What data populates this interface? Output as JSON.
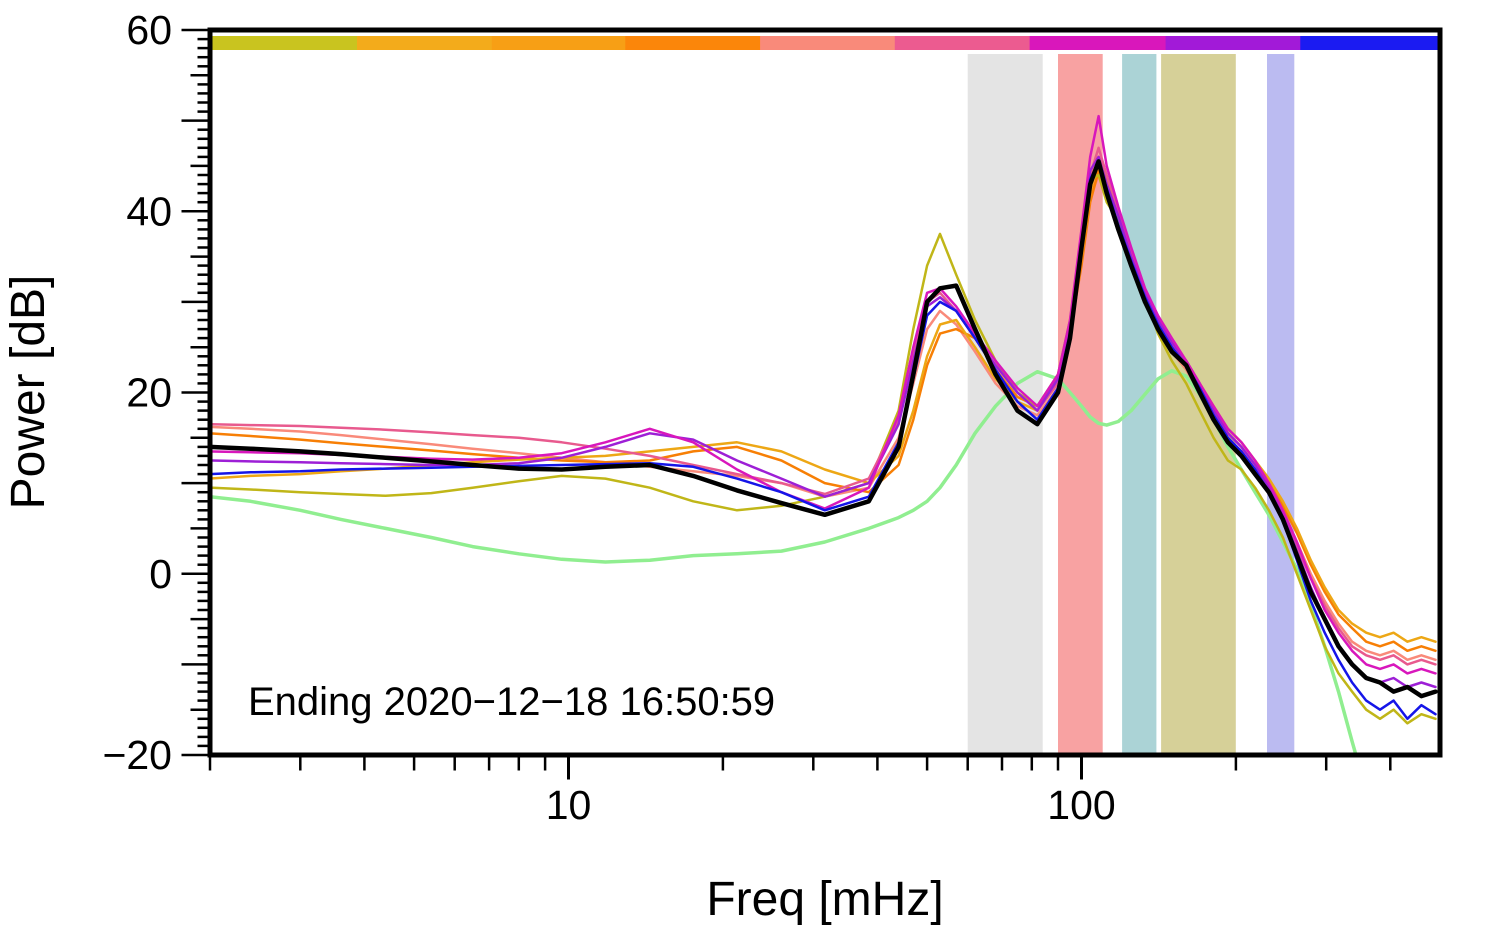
{
  "window": {
    "background": "#ffffff"
  },
  "chart_data": {
    "type": "line",
    "title": "",
    "xlabel": "Freq [mHz]",
    "ylabel": "Power [dB]",
    "annotation": "Ending 2020−12−18 16:50:59",
    "x_scale": "log",
    "xlim": [
      2,
      500
    ],
    "ylim": [
      -20,
      60
    ],
    "axis_color": "#000000",
    "x_ticks": {
      "major": [
        10,
        100
      ],
      "major_labels": [
        "10",
        "100"
      ],
      "minor": [
        2,
        3,
        4,
        5,
        6,
        7,
        8,
        9,
        20,
        30,
        40,
        50,
        60,
        70,
        80,
        90,
        200,
        300,
        400
      ]
    },
    "y_ticks": {
      "major": [
        -20,
        0,
        20,
        40,
        60
      ],
      "major_labels": [
        "−20",
        "0",
        "20",
        "40",
        "60"
      ],
      "minor_step": 1,
      "mid_step": 5,
      "major_step": 10
    },
    "bands": [
      {
        "name": "gray",
        "from_mhz": 60,
        "to_mhz": 84,
        "color": "#e4e4e4"
      },
      {
        "name": "red",
        "from_mhz": 90,
        "to_mhz": 110,
        "color": "#f8a2a2"
      },
      {
        "name": "teal",
        "from_mhz": 120,
        "to_mhz": 140,
        "color": "#abd3d6"
      },
      {
        "name": "olive",
        "from_mhz": 143,
        "to_mhz": 200,
        "color": "#d6d098"
      },
      {
        "name": "lavender",
        "from_mhz": 230,
        "to_mhz": 260,
        "color": "#bbbbf1"
      }
    ],
    "colorbar_segments": [
      {
        "color": "#c9c41f",
        "from": 0.0,
        "to": 0.118
      },
      {
        "color": "#f3ab1b",
        "from": 0.118,
        "to": 0.228
      },
      {
        "color": "#f79f15",
        "from": 0.228,
        "to": 0.337
      },
      {
        "color": "#fb860a",
        "from": 0.337,
        "to": 0.447
      },
      {
        "color": "#f98a7a",
        "from": 0.447,
        "to": 0.557
      },
      {
        "color": "#ec5b90",
        "from": 0.557,
        "to": 0.667
      },
      {
        "color": "#d917bb",
        "from": 0.667,
        "to": 0.778
      },
      {
        "color": "#a21ad8",
        "from": 0.778,
        "to": 0.888
      },
      {
        "color": "#1b1bf2",
        "from": 0.888,
        "to": 1.0
      }
    ],
    "x_mhz": [
      2.0,
      2.4,
      3.0,
      3.6,
      4.4,
      5.4,
      6.5,
      8.0,
      9.7,
      11.8,
      14.4,
      17.5,
      21.3,
      26,
      31.6,
      38.5,
      44,
      47,
      50,
      53,
      57,
      62,
      68,
      75,
      82,
      90,
      95,
      100,
      104,
      108,
      112,
      118,
      125,
      133,
      141,
      150,
      160,
      170,
      181,
      193,
      205,
      218,
      232,
      247,
      263,
      280,
      298,
      317,
      337,
      359,
      382,
      406,
      432,
      460,
      490
    ],
    "series": [
      {
        "name": "smooth-reference-green",
        "color": "#90ee90",
        "width": 3.5,
        "values": [
          8.5,
          8.0,
          7.0,
          6.0,
          5.0,
          4.0,
          3.0,
          2.2,
          1.6,
          1.3,
          1.5,
          2.0,
          2.2,
          2.5,
          3.5,
          5.0,
          6.2,
          7.0,
          8.0,
          9.5,
          12.0,
          15.5,
          18.5,
          21.0,
          22.3,
          21.5,
          20.0,
          18.5,
          17.3,
          16.6,
          16.4,
          16.8,
          18.0,
          19.8,
          21.5,
          22.4,
          21.8,
          19.8,
          17.0,
          14.0,
          11.5,
          9.0,
          6.5,
          3.5,
          0.5,
          -3.5,
          -8.0,
          -13.0,
          -18.5,
          -24.0,
          null,
          null,
          null,
          null,
          null
        ]
      },
      {
        "name": "spectrum-salmon",
        "color": "#f98a7a",
        "width": 2.5,
        "values": [
          16.2,
          16.0,
          15.7,
          15.3,
          14.8,
          14.3,
          13.8,
          13.3,
          12.8,
          12.3,
          11.8,
          11.3,
          10.8,
          10.0,
          8.5,
          9.5,
          15.0,
          21.0,
          27.0,
          29.0,
          27.5,
          24.5,
          21.0,
          18.5,
          17.5,
          20.5,
          26.0,
          34.5,
          41.5,
          44.0,
          41.5,
          38.0,
          34.0,
          30.0,
          27.0,
          24.5,
          22.5,
          20.0,
          17.5,
          15.0,
          13.5,
          11.5,
          9.5,
          7.0,
          3.5,
          0.0,
          -3.0,
          -5.5,
          -7.5,
          -8.5,
          -9.0,
          -8.5,
          -9.5,
          -9.0,
          -9.5
        ]
      },
      {
        "name": "spectrum-dark-orange",
        "color": "#f77f05",
        "width": 2.5,
        "values": [
          15.5,
          15.2,
          14.8,
          14.4,
          14.0,
          13.6,
          13.2,
          12.8,
          12.5,
          12.3,
          12.5,
          13.5,
          14.0,
          12.5,
          10.0,
          9.0,
          12.0,
          17.0,
          23.0,
          26.5,
          27.0,
          26.0,
          22.5,
          19.5,
          18.5,
          21.5,
          26.5,
          34.0,
          41.0,
          44.5,
          42.5,
          38.5,
          34.5,
          30.5,
          27.5,
          25.0,
          23.0,
          20.5,
          18.0,
          15.5,
          14.0,
          12.0,
          10.0,
          7.5,
          4.5,
          1.0,
          -2.0,
          -4.5,
          -6.0,
          -7.5,
          -8.0,
          -7.5,
          -8.5,
          -8.0,
          -8.5
        ]
      },
      {
        "name": "spectrum-orange",
        "color": "#eda715",
        "width": 2.5,
        "values": [
          10.5,
          10.8,
          11.0,
          11.3,
          11.6,
          12.0,
          12.3,
          12.6,
          12.8,
          13.0,
          13.5,
          14.0,
          14.5,
          13.5,
          11.5,
          10.0,
          13.0,
          18.0,
          24.0,
          27.5,
          28.0,
          25.0,
          21.5,
          19.0,
          18.0,
          21.0,
          27.0,
          35.0,
          42.0,
          46.0,
          43.5,
          39.5,
          35.5,
          31.0,
          28.0,
          25.5,
          23.5,
          21.0,
          18.5,
          16.0,
          14.5,
          12.5,
          10.5,
          8.0,
          5.0,
          1.5,
          -1.5,
          -4.0,
          -5.5,
          -6.5,
          -7.0,
          -6.5,
          -7.5,
          -7.0,
          -7.5
        ]
      },
      {
        "name": "spectrum-olive",
        "color": "#c0b618",
        "width": 2.5,
        "values": [
          9.5,
          9.3,
          9.0,
          8.8,
          8.6,
          8.9,
          9.5,
          10.2,
          10.8,
          10.5,
          9.5,
          8.0,
          7.0,
          7.5,
          8.5,
          10.0,
          18.0,
          27.0,
          34.0,
          37.5,
          33.0,
          28.0,
          23.5,
          20.0,
          18.5,
          22.0,
          28.0,
          37.0,
          43.5,
          44.0,
          41.0,
          39.0,
          35.0,
          30.5,
          26.5,
          23.5,
          21.0,
          18.0,
          15.0,
          12.5,
          11.5,
          9.5,
          7.0,
          4.0,
          0.0,
          -4.0,
          -8.0,
          -11.0,
          -13.0,
          -15.0,
          -16.0,
          -15.0,
          -16.5,
          -15.5,
          -16.0
        ]
      },
      {
        "name": "spectrum-pink",
        "color": "#e85a8e",
        "width": 2.5,
        "values": [
          16.5,
          16.4,
          16.3,
          16.1,
          15.9,
          15.6,
          15.3,
          15.0,
          14.5,
          13.8,
          13.0,
          12.0,
          11.0,
          10.0,
          8.8,
          10.5,
          17.0,
          24.0,
          30.0,
          31.0,
          29.0,
          26.0,
          23.0,
          20.0,
          18.0,
          21.0,
          27.0,
          36.0,
          44.0,
          47.0,
          44.0,
          40.0,
          35.5,
          31.0,
          28.0,
          25.5,
          23.0,
          20.5,
          18.0,
          15.5,
          14.0,
          12.0,
          9.5,
          6.5,
          3.0,
          -0.5,
          -3.5,
          -6.0,
          -8.0,
          -9.0,
          -9.5,
          -9.0,
          -10.0,
          -9.5,
          -10.0
        ]
      },
      {
        "name": "spectrum-purple",
        "color": "#9d1fd6",
        "width": 2.5,
        "values": [
          12.5,
          12.4,
          12.3,
          12.2,
          12.1,
          12.0,
          12.0,
          12.2,
          12.8,
          14.0,
          15.5,
          14.8,
          12.5,
          10.5,
          8.5,
          10.0,
          16.5,
          23.5,
          29.5,
          30.5,
          29.0,
          26.0,
          23.0,
          20.0,
          18.0,
          21.5,
          27.5,
          36.5,
          44.5,
          46.0,
          43.0,
          39.5,
          35.0,
          31.0,
          28.0,
          25.5,
          23.5,
          21.0,
          18.0,
          15.5,
          14.0,
          12.0,
          9.5,
          6.5,
          2.5,
          -1.5,
          -5.0,
          -8.0,
          -10.0,
          -11.5,
          -12.0,
          -11.5,
          -12.5,
          -12.0,
          -12.5
        ]
      },
      {
        "name": "spectrum-magenta",
        "color": "#d817bc",
        "width": 2.5,
        "values": [
          13.5,
          13.4,
          13.3,
          13.1,
          12.9,
          12.7,
          12.6,
          12.8,
          13.3,
          14.5,
          16.0,
          14.5,
          11.5,
          9.0,
          7.2,
          9.5,
          17.5,
          25.0,
          31.0,
          31.5,
          29.5,
          26.5,
          23.5,
          20.5,
          18.5,
          22.0,
          28.0,
          38.0,
          46.0,
          50.5,
          45.0,
          40.5,
          36.0,
          31.5,
          28.5,
          26.0,
          23.5,
          21.0,
          18.5,
          16.0,
          14.5,
          12.5,
          10.0,
          7.0,
          3.5,
          -0.5,
          -4.0,
          -6.5,
          -8.5,
          -10.0,
          -10.5,
          -10.0,
          -11.0,
          -10.5,
          -11.0
        ]
      },
      {
        "name": "spectrum-blue",
        "color": "#1515e8",
        "width": 2.5,
        "values": [
          11.0,
          11.2,
          11.3,
          11.5,
          11.6,
          11.7,
          11.8,
          11.9,
          12.0,
          12.1,
          12.2,
          11.8,
          10.5,
          9.0,
          7.0,
          8.5,
          14.5,
          21.5,
          28.5,
          30.0,
          29.0,
          26.0,
          22.5,
          19.0,
          17.0,
          20.5,
          26.5,
          35.5,
          43.5,
          45.5,
          42.5,
          38.5,
          34.5,
          30.5,
          27.5,
          25.0,
          23.0,
          20.5,
          17.5,
          15.0,
          13.5,
          11.5,
          9.0,
          6.0,
          1.5,
          -3.0,
          -6.5,
          -9.5,
          -12.0,
          -14.0,
          -15.0,
          -14.0,
          -16.0,
          -14.5,
          -15.5
        ]
      },
      {
        "name": "median-black",
        "color": "#000000",
        "width": 4.5,
        "values": [
          14.0,
          13.8,
          13.5,
          13.2,
          12.8,
          12.4,
          12.0,
          11.6,
          11.5,
          11.8,
          12.0,
          10.8,
          9.2,
          7.8,
          6.5,
          8.0,
          14.0,
          22.0,
          30.0,
          31.5,
          31.8,
          27.0,
          22.0,
          18.0,
          16.5,
          20.0,
          26.0,
          36.0,
          43.0,
          45.5,
          42.0,
          38.0,
          34.0,
          30.0,
          27.0,
          24.5,
          23.0,
          20.0,
          17.0,
          14.5,
          13.0,
          11.0,
          9.0,
          6.0,
          2.0,
          -2.0,
          -5.0,
          -8.0,
          -10.0,
          -11.5,
          -12.0,
          -13.0,
          -12.5,
          -13.5,
          -13.0
        ]
      }
    ]
  }
}
